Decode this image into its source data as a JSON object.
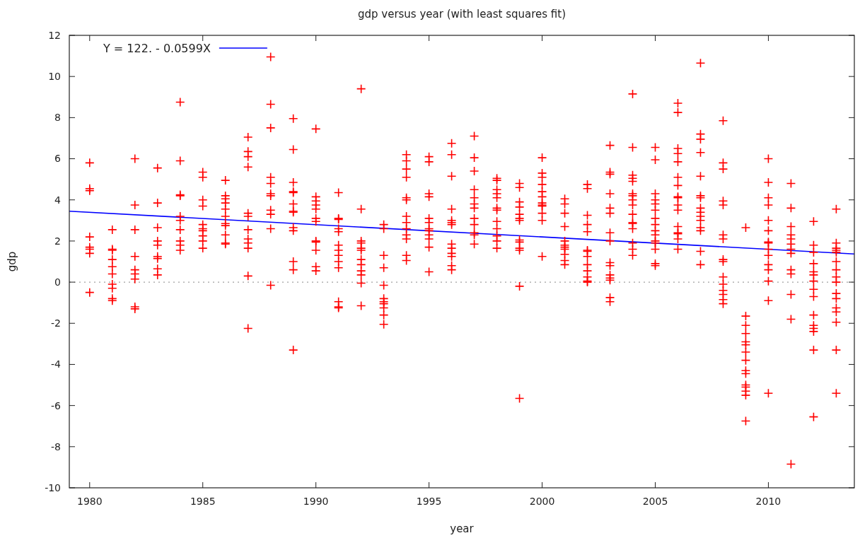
{
  "chart_data": {
    "type": "scatter",
    "title": "gdp versus year (with least squares fit)",
    "xlabel": "year",
    "ylabel": "gdp",
    "xlim": [
      1979.1,
      2013.8
    ],
    "xticks": [
      1980,
      1985,
      1990,
      1995,
      2000,
      2005,
      2010
    ],
    "ylim": [
      -10,
      12
    ],
    "yticks": [
      -10,
      -8,
      -6,
      -4,
      -2,
      0,
      2,
      4,
      6,
      8,
      10,
      12
    ],
    "grid": false,
    "legend": "top left",
    "marker": "cross",
    "ref_lines": [
      {
        "axis": "y",
        "value": 0,
        "color": "#a0a0a0",
        "line_style": "dotted"
      }
    ],
    "series": [
      {
        "color": "#ff0000",
        "x": [
          1980,
          1980,
          1980,
          1980,
          1980,
          1980,
          1980,
          1980
        ],
        "values": [
          5.8,
          4.55,
          4.45,
          2.2,
          1.7,
          1.6,
          1.4,
          -0.5
        ]
      },
      {
        "color": "#ff0000",
        "x": [
          1981,
          1981,
          1981,
          1981,
          1981,
          1981,
          1981,
          1981,
          1981,
          1981
        ],
        "values": [
          2.55,
          1.6,
          1.55,
          1.1,
          0.75,
          0.4,
          -0.1,
          -0.3,
          -0.8,
          -0.9
        ]
      },
      {
        "color": "#ff0000",
        "x": [
          1982,
          1982,
          1982,
          1982,
          1982,
          1982,
          1982,
          1982,
          1982
        ],
        "values": [
          6.0,
          3.75,
          2.55,
          1.25,
          0.6,
          0.4,
          0.15,
          -1.2,
          -1.3
        ]
      },
      {
        "color": "#ff0000",
        "x": [
          1983,
          1983,
          1983,
          1983,
          1983,
          1983,
          1983,
          1983,
          1983
        ],
        "values": [
          5.55,
          3.85,
          2.65,
          2.0,
          1.8,
          1.25,
          1.15,
          0.65,
          0.35
        ]
      },
      {
        "color": "#ff0000",
        "x": [
          1984,
          1984,
          1984,
          1984,
          1984,
          1984,
          1984,
          1984,
          1984,
          1984
        ],
        "values": [
          8.75,
          5.9,
          4.25,
          4.2,
          3.2,
          3.0,
          2.55,
          2.0,
          1.8,
          1.55
        ]
      },
      {
        "color": "#ff0000",
        "x": [
          1985,
          1985,
          1985,
          1985,
          1985,
          1985,
          1985,
          1985,
          1985,
          1985
        ],
        "values": [
          5.35,
          5.1,
          4.0,
          3.7,
          2.8,
          2.6,
          2.5,
          2.25,
          2.0,
          1.65
        ]
      },
      {
        "color": "#ff0000",
        "x": [
          1986,
          1986,
          1986,
          1986,
          1986,
          1986,
          1986,
          1986,
          1986,
          1986,
          1986
        ],
        "values": [
          4.95,
          4.2,
          4.05,
          3.85,
          3.55,
          3.2,
          2.85,
          2.75,
          2.3,
          1.9,
          1.85
        ]
      },
      {
        "color": "#ff0000",
        "x": [
          1987,
          1987,
          1987,
          1987,
          1987,
          1987,
          1987,
          1987,
          1987,
          1987,
          1987,
          1987
        ],
        "values": [
          7.05,
          6.35,
          6.1,
          5.6,
          3.35,
          3.2,
          2.55,
          2.1,
          1.9,
          1.65,
          0.3,
          -2.25
        ]
      },
      {
        "color": "#ff0000",
        "x": [
          1988,
          1988,
          1988,
          1988,
          1988,
          1988,
          1988,
          1988,
          1988,
          1988,
          1988
        ],
        "values": [
          10.95,
          8.65,
          7.5,
          5.1,
          4.8,
          4.3,
          4.2,
          3.5,
          3.3,
          2.6,
          -0.15
        ]
      },
      {
        "color": "#ff0000",
        "x": [
          1989,
          1989,
          1989,
          1989,
          1989,
          1989,
          1989,
          1989,
          1989,
          1989,
          1989,
          1989,
          1989
        ],
        "values": [
          7.95,
          6.45,
          4.85,
          4.4,
          4.35,
          3.8,
          3.45,
          3.4,
          2.65,
          2.5,
          1.0,
          0.6,
          -3.3
        ]
      },
      {
        "color": "#ff0000",
        "x": [
          1990,
          1990,
          1990,
          1990,
          1990,
          1990,
          1990,
          1990,
          1990,
          1990,
          1990,
          1990
        ],
        "values": [
          7.45,
          4.15,
          3.95,
          3.75,
          3.55,
          3.1,
          2.95,
          2.0,
          1.95,
          1.55,
          0.75,
          0.55
        ]
      },
      {
        "color": "#ff0000",
        "x": [
          1991,
          1991,
          1991,
          1991,
          1991,
          1991,
          1991,
          1991,
          1991,
          1991,
          1991,
          1991,
          1991
        ],
        "values": [
          4.35,
          3.1,
          3.05,
          2.6,
          2.45,
          1.8,
          1.55,
          1.3,
          1.0,
          0.7,
          -0.95,
          -1.2,
          -1.25
        ]
      },
      {
        "color": "#ff0000",
        "x": [
          1992,
          1992,
          1992,
          1992,
          1992,
          1992,
          1992,
          1992,
          1992,
          1992,
          1992,
          1992
        ],
        "values": [
          9.4,
          3.55,
          2.0,
          1.9,
          1.65,
          1.55,
          1.1,
          0.85,
          0.55,
          0.35,
          -0.05,
          -1.15
        ]
      },
      {
        "color": "#ff0000",
        "x": [
          1993,
          1993,
          1993,
          1993,
          1993,
          1993,
          1993,
          1993,
          1993,
          1993,
          1993
        ],
        "values": [
          2.8,
          2.6,
          1.3,
          0.7,
          -0.15,
          -0.8,
          -0.95,
          -1.05,
          -1.25,
          -1.6,
          -2.05
        ]
      },
      {
        "color": "#ff0000",
        "x": [
          1994,
          1994,
          1994,
          1994,
          1994,
          1994,
          1994,
          1994,
          1994,
          1994,
          1994,
          1994,
          1994
        ],
        "values": [
          6.2,
          5.9,
          5.5,
          5.1,
          4.1,
          4.0,
          3.2,
          2.9,
          2.6,
          2.3,
          2.1,
          1.3,
          1.05
        ]
      },
      {
        "color": "#ff0000",
        "x": [
          1995,
          1995,
          1995,
          1995,
          1995,
          1995,
          1995,
          1995,
          1995,
          1995,
          1995,
          1995
        ],
        "values": [
          6.1,
          5.85,
          4.3,
          4.15,
          3.1,
          2.9,
          2.6,
          2.5,
          2.3,
          2.1,
          1.7,
          0.5
        ]
      },
      {
        "color": "#ff0000",
        "x": [
          1996,
          1996,
          1996,
          1996,
          1996,
          1996,
          1996,
          1996,
          1996,
          1996,
          1996,
          1996,
          1996
        ],
        "values": [
          6.75,
          6.2,
          5.15,
          3.55,
          3.0,
          2.9,
          2.8,
          1.85,
          1.65,
          1.4,
          1.25,
          0.8,
          0.6
        ]
      },
      {
        "color": "#ff0000",
        "x": [
          1997,
          1997,
          1997,
          1997,
          1997,
          1997,
          1997,
          1997,
          1997,
          1997,
          1997,
          1997
        ],
        "values": [
          7.1,
          6.05,
          5.4,
          4.5,
          4.1,
          3.8,
          3.6,
          3.1,
          2.8,
          2.4,
          2.3,
          1.85
        ]
      },
      {
        "color": "#ff0000",
        "x": [
          1998,
          1998,
          1998,
          1998,
          1998,
          1998,
          1998,
          1998,
          1998,
          1998,
          1998,
          1998
        ],
        "values": [
          5.05,
          4.95,
          4.5,
          4.3,
          4.1,
          3.6,
          3.5,
          2.95,
          2.6,
          2.25,
          2.0,
          1.65
        ]
      },
      {
        "color": "#ff0000",
        "x": [
          1999,
          1999,
          1999,
          1999,
          1999,
          1999,
          1999,
          1999,
          1999,
          1999,
          1999,
          1999,
          1999
        ],
        "values": [
          4.8,
          4.6,
          3.9,
          3.65,
          3.3,
          3.1,
          3.0,
          2.05,
          1.95,
          1.65,
          1.55,
          -0.2,
          -5.65
        ]
      },
      {
        "color": "#ff0000",
        "x": [
          2000,
          2000,
          2000,
          2000,
          2000,
          2000,
          2000,
          2000,
          2000,
          2000,
          2000,
          2000
        ],
        "values": [
          6.05,
          5.3,
          5.1,
          4.75,
          4.4,
          4.15,
          3.85,
          3.75,
          3.7,
          3.35,
          3.0,
          1.25
        ]
      },
      {
        "color": "#ff0000",
        "x": [
          2001,
          2001,
          2001,
          2001,
          2001,
          2001,
          2001,
          2001,
          2001,
          2001,
          2001
        ],
        "values": [
          4.05,
          3.8,
          3.35,
          2.7,
          2.0,
          1.8,
          1.7,
          1.6,
          1.35,
          1.05,
          0.85
        ]
      },
      {
        "color": "#ff0000",
        "x": [
          2002,
          2002,
          2002,
          2002,
          2002,
          2002,
          2002,
          2002,
          2002,
          2002,
          2002,
          2002,
          2002
        ],
        "values": [
          4.75,
          4.55,
          3.25,
          2.8,
          2.45,
          1.55,
          1.5,
          1.25,
          0.85,
          0.55,
          0.25,
          0.05,
          0.0
        ]
      },
      {
        "color": "#ff0000",
        "x": [
          2003,
          2003,
          2003,
          2003,
          2003,
          2003,
          2003,
          2003,
          2003,
          2003,
          2003,
          2003,
          2003,
          2003,
          2003
        ],
        "values": [
          6.65,
          5.35,
          5.25,
          4.3,
          3.6,
          3.35,
          2.4,
          2.0,
          0.95,
          0.8,
          0.35,
          0.2,
          0.1,
          -0.75,
          -0.95
        ]
      },
      {
        "color": "#ff0000",
        "x": [
          2004,
          2004,
          2004,
          2004,
          2004,
          2004,
          2004,
          2004,
          2004,
          2004,
          2004,
          2004,
          2004,
          2004,
          2004,
          2004
        ],
        "values": [
          9.15,
          6.55,
          5.2,
          5.05,
          4.9,
          4.3,
          4.2,
          4.0,
          3.75,
          3.3,
          2.9,
          2.85,
          2.6,
          1.9,
          1.6,
          1.3
        ]
      },
      {
        "color": "#ff0000",
        "x": [
          2005,
          2005,
          2005,
          2005,
          2005,
          2005,
          2005,
          2005,
          2005,
          2005,
          2005,
          2005,
          2005,
          2005,
          2005
        ],
        "values": [
          6.55,
          5.95,
          4.3,
          4.0,
          3.8,
          3.5,
          3.1,
          2.8,
          2.5,
          2.3,
          2.0,
          1.9,
          1.6,
          0.9,
          0.8
        ]
      },
      {
        "color": "#ff0000",
        "x": [
          2006,
          2006,
          2006,
          2006,
          2006,
          2006,
          2006,
          2006,
          2006,
          2006,
          2006,
          2006,
          2006,
          2006,
          2006,
          2006
        ],
        "values": [
          8.7,
          8.25,
          6.5,
          6.25,
          5.85,
          5.1,
          4.7,
          4.15,
          4.1,
          3.75,
          3.5,
          2.7,
          2.4,
          2.35,
          2.1,
          1.6
        ]
      },
      {
        "color": "#ff0000",
        "x": [
          2007,
          2007,
          2007,
          2007,
          2007,
          2007,
          2007,
          2007,
          2007,
          2007,
          2007,
          2007,
          2007,
          2007,
          2007
        ],
        "values": [
          10.65,
          7.2,
          6.95,
          6.3,
          5.15,
          4.2,
          4.1,
          3.6,
          3.4,
          3.2,
          3.0,
          2.65,
          2.5,
          1.5,
          0.85
        ]
      },
      {
        "color": "#ff0000",
        "x": [
          2008,
          2008,
          2008,
          2008,
          2008,
          2008,
          2008,
          2008,
          2008,
          2008,
          2008,
          2008,
          2008,
          2008,
          2008
        ],
        "values": [
          7.85,
          5.8,
          5.5,
          3.95,
          3.75,
          2.3,
          2.1,
          1.1,
          1.0,
          0.25,
          -0.1,
          -0.4,
          -0.6,
          -0.85,
          -1.05
        ]
      },
      {
        "color": "#ff0000",
        "x": [
          2009,
          2009,
          2009,
          2009,
          2009,
          2009,
          2009,
          2009,
          2009,
          2009,
          2009,
          2009,
          2009,
          2009,
          2009
        ],
        "values": [
          2.65,
          -1.65,
          -2.1,
          -2.5,
          -2.9,
          -3.05,
          -3.4,
          -3.8,
          -4.3,
          -4.45,
          -5.0,
          -5.1,
          -5.3,
          -5.5,
          -6.75
        ]
      },
      {
        "color": "#ff0000",
        "x": [
          2010,
          2010,
          2010,
          2010,
          2010,
          2010,
          2010,
          2010,
          2010,
          2010,
          2010,
          2010,
          2010,
          2010,
          2010
        ],
        "values": [
          6.0,
          4.85,
          4.1,
          3.75,
          3.0,
          2.5,
          1.95,
          1.9,
          1.6,
          1.3,
          0.85,
          0.6,
          0.05,
          -0.9,
          -5.4
        ]
      },
      {
        "color": "#ff0000",
        "x": [
          2011,
          2011,
          2011,
          2011,
          2011,
          2011,
          2011,
          2011,
          2011,
          2011,
          2011,
          2011,
          2011
        ],
        "values": [
          4.8,
          3.6,
          2.7,
          2.3,
          2.1,
          1.85,
          1.6,
          1.4,
          0.6,
          0.4,
          -0.6,
          -1.8,
          -8.85
        ]
      },
      {
        "color": "#ff0000",
        "x": [
          2012,
          2012,
          2012,
          2012,
          2012,
          2012,
          2012,
          2012,
          2012,
          2012,
          2012,
          2012,
          2012,
          2012,
          2012
        ],
        "values": [
          2.95,
          1.8,
          1.45,
          0.9,
          0.5,
          0.35,
          0.05,
          -0.35,
          -0.7,
          -1.6,
          -2.1,
          -2.25,
          -2.4,
          -3.3,
          -6.55
        ]
      },
      {
        "color": "#ff0000",
        "x": [
          2013,
          2013,
          2013,
          2013,
          2013,
          2013,
          2013,
          2013,
          2013,
          2013,
          2013,
          2013,
          2013,
          2013,
          2013,
          2013
        ],
        "values": [
          3.55,
          1.9,
          1.65,
          1.55,
          1.45,
          1.0,
          0.6,
          0.25,
          0.0,
          -0.55,
          -0.8,
          -1.25,
          -1.45,
          -1.95,
          -3.3,
          -5.4
        ]
      },
      {
        "type": "line",
        "marker": "none",
        "name": "Y = 122. - 0.0599X",
        "color": "#0000ff",
        "x": [
          1979.1,
          2013.8
        ],
        "values": [
          3.45,
          1.37
        ]
      }
    ]
  }
}
